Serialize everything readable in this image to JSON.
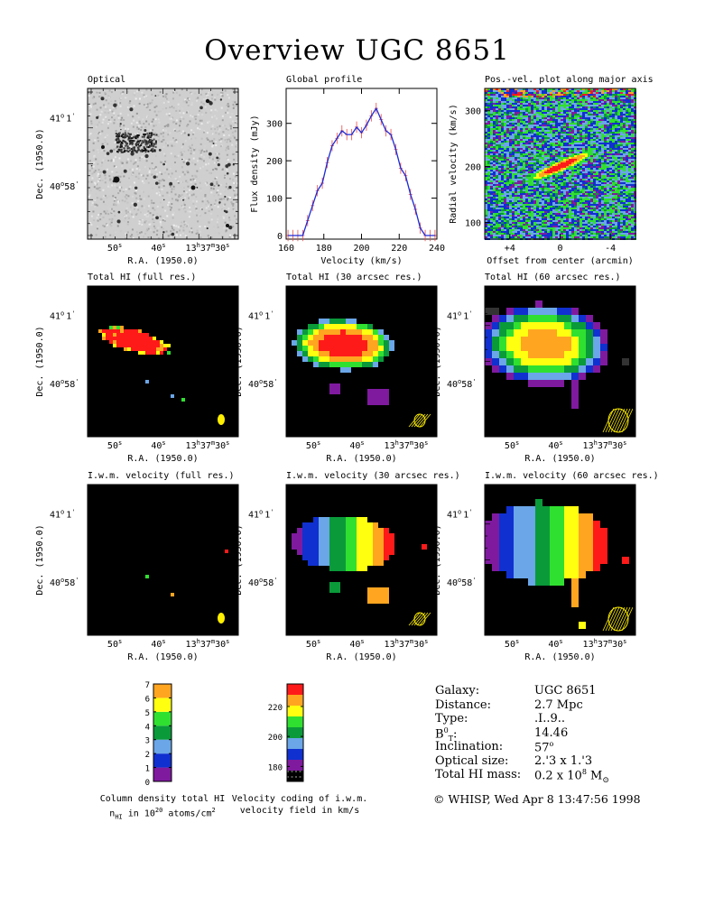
{
  "title": "Overview UGC 8651",
  "colors": {
    "rainbow": [
      "#7f1a9f",
      "#1030d0",
      "#6aa6e8",
      "#0a9a3a",
      "#30e030",
      "#ffff10",
      "#ffa520",
      "#ff1a1a"
    ],
    "profile_line": "#1a2ad8",
    "error_bars": "#e84a4a",
    "beam": "#ffef00",
    "panel_bg": "#000000"
  },
  "panels": {
    "optical": {
      "title": "Optical",
      "ylabel": "Dec. (1950.0)",
      "xlabel": "R.A. (1950.0)"
    },
    "profile": {
      "title": "Global profile",
      "ylabel": "Flux density (mJy)",
      "xlabel": "Velocity (km/s)"
    },
    "pv": {
      "title": "Pos.-vel. plot along major axis",
      "ylabel": "Radial velocity (km/s)",
      "xlabel": "Offset from center (arcmin)"
    },
    "mom0_full": {
      "title": "Total HI (full res.)"
    },
    "mom0_30": {
      "title": "Total HI (30 arcsec res.)"
    },
    "mom0_60": {
      "title": "Total HI (60 arcsec res.)"
    },
    "mom1_full": {
      "title": "I.w.m. velocity (full res.)"
    },
    "mom1_30": {
      "title": "I.w.m. velocity (30 arcsec res.)"
    },
    "mom1_60": {
      "title": "I.w.m. velocity (60 arcsec res.)"
    }
  },
  "axes": {
    "ra_ticks": [
      "50",
      "40",
      "13",
      "37",
      "30"
    ],
    "ra_units": [
      "s",
      "s",
      "h",
      "m",
      "s"
    ],
    "dec_ticks": [
      "41",
      "1",
      "40",
      "58"
    ],
    "dec_units": [
      "o",
      "'",
      "o",
      "'"
    ],
    "ra_label": "R.A. (1950.0)",
    "dec_label": "Dec. (1950.0)"
  },
  "chart_data": [
    {
      "type": "line",
      "title": "Global profile",
      "xlabel": "Velocity (km/s)",
      "ylabel": "Flux density (mJy)",
      "xlim": [
        160,
        240
      ],
      "ylim": [
        0,
        350
      ],
      "xticks": [
        160,
        180,
        200,
        220,
        240
      ],
      "yticks": [
        0,
        100,
        200,
        300
      ],
      "x": [
        161,
        163.6,
        166.2,
        168.8,
        171.4,
        174,
        176.6,
        179.2,
        181.8,
        184.4,
        187,
        189.6,
        192.2,
        194.8,
        197.4,
        200,
        202.6,
        205.2,
        207.8,
        210.4,
        213,
        215.6,
        218.2,
        220.8,
        223.4,
        226,
        228.6,
        231.2,
        233.8,
        236.4,
        239
      ],
      "y": [
        0,
        0,
        0,
        0,
        40,
        80,
        120,
        140,
        195,
        240,
        260,
        280,
        270,
        270,
        290,
        275,
        295,
        320,
        340,
        310,
        280,
        270,
        230,
        180,
        160,
        110,
        70,
        20,
        0,
        0,
        0
      ],
      "error": 15
    },
    {
      "type": "heatmap",
      "title": "Pos.-vel. plot along major axis",
      "xlabel": "Offset from center (arcmin)",
      "ylabel": "Radial velocity (km/s)",
      "xlim": [
        6,
        -6
      ],
      "ylim": [
        70,
        340
      ],
      "xticks": [
        4,
        0,
        -4
      ],
      "xtick_labels": [
        "+4",
        "0",
        "-4"
      ],
      "yticks": [
        100,
        200,
        300
      ]
    },
    {
      "type": "heatmap",
      "title": "Column density total HI",
      "colorbar_ticks": [
        0,
        1,
        2,
        3,
        4,
        5,
        6,
        7
      ],
      "colorbar_label_line1": "Column density total HI",
      "colorbar_label_line2_a": "n",
      "colorbar_label_line2_sub": "HI",
      "colorbar_label_line2_b": " in 10",
      "colorbar_label_line2_sup": "20",
      "colorbar_label_line2_c": " atoms/cm",
      "colorbar_label_line2_sup2": "2"
    },
    {
      "type": "heatmap",
      "title": "Velocity coding of i.w.m. velocity field",
      "colorbar_ticks": [
        180,
        200,
        220
      ],
      "colorbar_range": [
        170,
        235
      ],
      "colorbar_label_line1": "Velocity coding of i.w.m.",
      "colorbar_label_line2": "velocity field in km/s"
    }
  ],
  "info": {
    "rows": [
      {
        "k": "Galaxy:",
        "v": "UGC 8651"
      },
      {
        "k": "Distance:",
        "v": "2.7 Mpc"
      },
      {
        "k": "Type:",
        "v": ".I..9.."
      },
      {
        "k": "B",
        "ksup": "0",
        "ksub": "T",
        "ktail": ":",
        "v": "14.46"
      },
      {
        "k": "Inclination:",
        "v": "57",
        "vsup": "o"
      },
      {
        "k": "Optical size:",
        "v": "2.'3 x 1.'3"
      },
      {
        "k": "Total HI mass:",
        "v": "0.2 x 10",
        "vsup": "8",
        "vtail": " M",
        "vsub": "⊙"
      }
    ]
  },
  "footer": "© WHISP, Wed Apr  8 13:47:56 1998"
}
